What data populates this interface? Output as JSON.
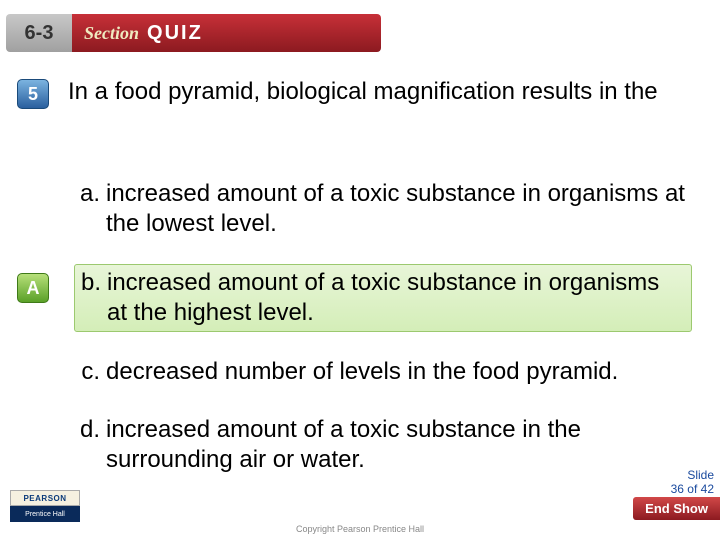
{
  "banner": {
    "section_number": "6-3",
    "section_word": "Section",
    "quiz_word": "QUIZ",
    "grey_bg_gradient": [
      "#c8c8c8",
      "#a0a0a0"
    ],
    "red_bg_gradient": [
      "#c73038",
      "#8c1a20"
    ],
    "section_color": "#efeac0",
    "quiz_color": "#ffffff"
  },
  "question": {
    "number": "5",
    "badge_gradient": [
      "#7bb3e0",
      "#2a5f9e"
    ],
    "text": "In a food pyramid, biological magnification results in the",
    "font_size": 24
  },
  "answer_badge": {
    "letter": "A",
    "badge_gradient": [
      "#b7e07a",
      "#5aa028"
    ]
  },
  "options": [
    {
      "letter": "a.",
      "text": "increased amount of a toxic substance in organisms at the lowest level.",
      "highlight": false
    },
    {
      "letter": "b.",
      "text": "increased amount of a toxic substance in organisms at the highest level.",
      "highlight": true
    },
    {
      "letter": "c.",
      "text": "decreased number of levels in the food pyramid.",
      "highlight": false
    },
    {
      "letter": "d.",
      "text": "increased amount of a toxic substance in the surrounding air or water.",
      "highlight": false
    }
  ],
  "highlight_style": {
    "bg_gradient": [
      "#e8f5d8",
      "#d4eeb8"
    ],
    "border_color": "#9cc96f"
  },
  "footer": {
    "slide_label": "Slide",
    "slide_pos": "36 of 42",
    "end_show": "End Show",
    "logo_top": "PEARSON",
    "logo_bot": "Prentice Hall",
    "copyright": "Copyright Pearson Prentice Hall"
  },
  "colors": {
    "text": "#000000",
    "slide_info": "#1a4a9e",
    "copyright": "#888888",
    "background": "#ffffff"
  }
}
